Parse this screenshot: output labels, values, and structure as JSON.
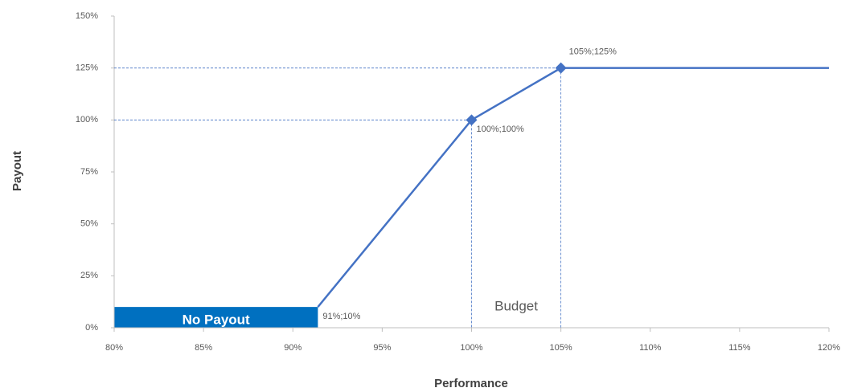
{
  "chart_data": {
    "type": "line",
    "x_label": "Performance",
    "y_label": "Payout",
    "x": [
      91.4,
      100,
      105,
      120
    ],
    "values": [
      10,
      100,
      125,
      125
    ],
    "value_labels": [
      "91%;10%",
      "100%;100%",
      "105%;125%",
      null
    ],
    "markers": [
      false,
      true,
      true,
      false
    ],
    "color": "#4472c4",
    "xlim": [
      80,
      120
    ],
    "ylim": [
      0,
      150
    ],
    "xticks": [
      {
        "value": 80,
        "label": "80%"
      },
      {
        "value": 85,
        "label": "85%"
      },
      {
        "value": 90,
        "label": "90%"
      },
      {
        "value": 95,
        "label": "95%"
      },
      {
        "value": 100,
        "label": "100%"
      },
      {
        "value": 105,
        "label": "105%"
      },
      {
        "value": 110,
        "label": "110%"
      },
      {
        "value": 115,
        "label": "115%"
      },
      {
        "value": 120,
        "label": "120%"
      }
    ],
    "yticks": [
      {
        "value": 0,
        "label": "0%"
      },
      {
        "value": 25,
        "label": "25%"
      },
      {
        "value": 50,
        "label": "50%"
      },
      {
        "value": 75,
        "label": "75%"
      },
      {
        "value": 100,
        "label": "100%"
      },
      {
        "value": 125,
        "label": "125%"
      },
      {
        "value": 150,
        "label": "150%"
      }
    ],
    "annotations": [
      {
        "text": "No Payout",
        "color": "#0070c0"
      },
      {
        "text": "Budget"
      }
    ]
  }
}
